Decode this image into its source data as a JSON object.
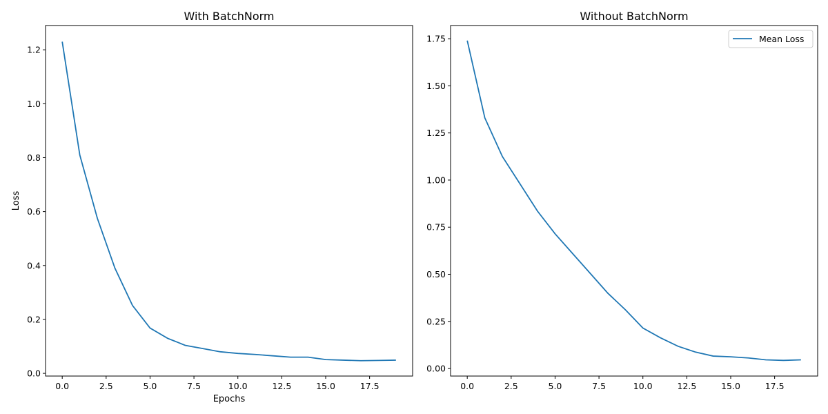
{
  "chart_data": [
    {
      "type": "line",
      "title": "With BatchNorm",
      "xlabel": "Epochs",
      "ylabel": "Loss",
      "xlim": [
        -0.95,
        19.95
      ],
      "ylim": [
        -0.01,
        1.29
      ],
      "xticks": [
        0,
        2.5,
        5,
        7.5,
        10,
        12.5,
        15,
        17.5
      ],
      "xtick_labels": [
        "0.0",
        "2.5",
        "5.0",
        "7.5",
        "10.0",
        "12.5",
        "15.0",
        "17.5"
      ],
      "yticks": [
        0,
        0.2,
        0.4,
        0.6,
        0.8,
        1.0,
        1.2
      ],
      "ytick_labels": [
        "0.0",
        "0.2",
        "0.4",
        "0.6",
        "0.8",
        "1.0",
        "1.2"
      ],
      "series": [
        {
          "color": "#1f77b4",
          "x": [
            0,
            1,
            2,
            3,
            4,
            5,
            6,
            7,
            8,
            9,
            10,
            11,
            12,
            13,
            14,
            15,
            16,
            17,
            18,
            19
          ],
          "y": [
            1.23,
            0.81,
            0.575,
            0.39,
            0.252,
            0.168,
            0.13,
            0.104,
            0.092,
            0.08,
            0.074,
            0.07,
            0.065,
            0.06,
            0.06,
            0.051,
            0.049,
            0.047,
            0.048,
            0.049
          ]
        }
      ],
      "legend": null
    },
    {
      "type": "line",
      "title": "Without BatchNorm",
      "xlabel": "",
      "ylabel": "",
      "xlim": [
        -0.95,
        19.95
      ],
      "ylim": [
        -0.04,
        1.82
      ],
      "xticks": [
        0,
        2.5,
        5,
        7.5,
        10,
        12.5,
        15,
        17.5
      ],
      "xtick_labels": [
        "0.0",
        "2.5",
        "5.0",
        "7.5",
        "10.0",
        "12.5",
        "15.0",
        "17.5"
      ],
      "yticks": [
        0,
        0.25,
        0.5,
        0.75,
        1.0,
        1.25,
        1.5,
        1.75
      ],
      "ytick_labels": [
        "0.00",
        "0.25",
        "0.50",
        "0.75",
        "1.00",
        "1.25",
        "1.50",
        "1.75"
      ],
      "series": [
        {
          "name": "Mean Loss",
          "color": "#1f77b4",
          "x": [
            0,
            1,
            2,
            3,
            4,
            5,
            6,
            7,
            8,
            9,
            10,
            11,
            12,
            13,
            14,
            15,
            16,
            17,
            18,
            19
          ],
          "y": [
            1.74,
            1.33,
            1.125,
            0.98,
            0.835,
            0.715,
            0.61,
            0.505,
            0.4,
            0.312,
            0.215,
            0.163,
            0.118,
            0.087,
            0.066,
            0.062,
            0.056,
            0.046,
            0.043,
            0.046
          ]
        }
      ],
      "legend": "top-right"
    }
  ]
}
